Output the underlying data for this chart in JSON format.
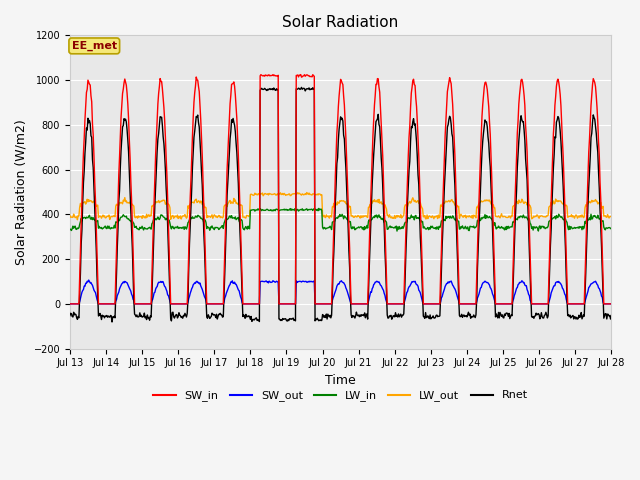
{
  "title": "Solar Radiation",
  "xlabel": "Time",
  "ylabel": "Solar Radiation (W/m2)",
  "ylim": [
    -200,
    1200
  ],
  "yticks": [
    -200,
    0,
    200,
    400,
    600,
    800,
    1000,
    1200
  ],
  "xtick_labels": [
    "Jul 13",
    "Jul 14",
    "Jul 15",
    "Jul 16",
    "Jul 17",
    "Jul 18",
    "Jul 19",
    "Jul 20",
    "Jul 21",
    "Jul 22",
    "Jul 23",
    "Jul 24",
    "Jul 25",
    "Jul 26",
    "Jul 27",
    "Jul 28"
  ],
  "annotation_text": "EE_met",
  "bg_color": "#f5f5f5",
  "plot_bg_color": "#e8e8e8",
  "colors": {
    "SW_in": "red",
    "SW_out": "blue",
    "LW_in": "green",
    "LW_out": "orange",
    "Rnet": "black"
  },
  "legend_entries": [
    "SW_in",
    "SW_out",
    "LW_in",
    "LW_out",
    "Rnet"
  ],
  "grid_color": "white",
  "title_fontsize": 11,
  "tick_fontsize": 7,
  "label_fontsize": 9
}
